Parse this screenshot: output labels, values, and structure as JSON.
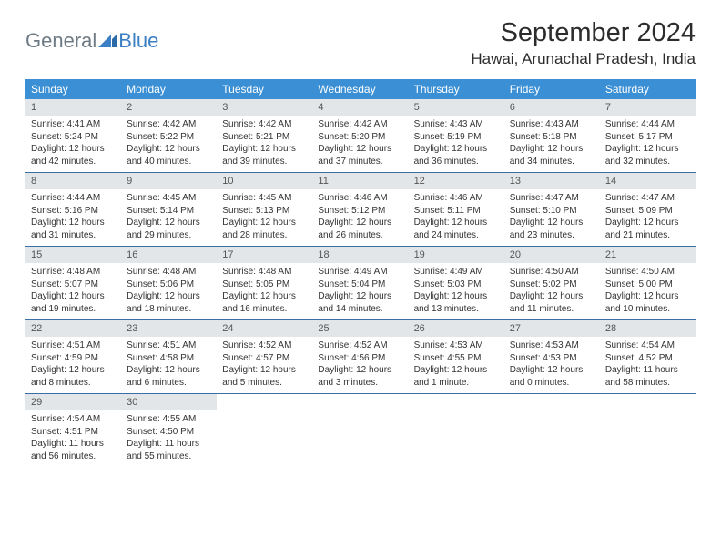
{
  "logo": {
    "text1": "General",
    "text2": "Blue"
  },
  "title": "September 2024",
  "location": "Hawai, Arunachal Pradesh, India",
  "weekdays": [
    "Sunday",
    "Monday",
    "Tuesday",
    "Wednesday",
    "Thursday",
    "Friday",
    "Saturday"
  ],
  "colors": {
    "header_bg": "#3b8fd4",
    "header_text": "#ffffff",
    "row_divider": "#3b6fa4",
    "daynum_bg": "#e3e6e8",
    "logo_gray": "#6f7b84",
    "logo_blue": "#3b7fc4"
  },
  "weeks": [
    [
      {
        "n": "1",
        "sr": "Sunrise: 4:41 AM",
        "ss": "Sunset: 5:24 PM",
        "dl": "Daylight: 12 hours and 42 minutes."
      },
      {
        "n": "2",
        "sr": "Sunrise: 4:42 AM",
        "ss": "Sunset: 5:22 PM",
        "dl": "Daylight: 12 hours and 40 minutes."
      },
      {
        "n": "3",
        "sr": "Sunrise: 4:42 AM",
        "ss": "Sunset: 5:21 PM",
        "dl": "Daylight: 12 hours and 39 minutes."
      },
      {
        "n": "4",
        "sr": "Sunrise: 4:42 AM",
        "ss": "Sunset: 5:20 PM",
        "dl": "Daylight: 12 hours and 37 minutes."
      },
      {
        "n": "5",
        "sr": "Sunrise: 4:43 AM",
        "ss": "Sunset: 5:19 PM",
        "dl": "Daylight: 12 hours and 36 minutes."
      },
      {
        "n": "6",
        "sr": "Sunrise: 4:43 AM",
        "ss": "Sunset: 5:18 PM",
        "dl": "Daylight: 12 hours and 34 minutes."
      },
      {
        "n": "7",
        "sr": "Sunrise: 4:44 AM",
        "ss": "Sunset: 5:17 PM",
        "dl": "Daylight: 12 hours and 32 minutes."
      }
    ],
    [
      {
        "n": "8",
        "sr": "Sunrise: 4:44 AM",
        "ss": "Sunset: 5:16 PM",
        "dl": "Daylight: 12 hours and 31 minutes."
      },
      {
        "n": "9",
        "sr": "Sunrise: 4:45 AM",
        "ss": "Sunset: 5:14 PM",
        "dl": "Daylight: 12 hours and 29 minutes."
      },
      {
        "n": "10",
        "sr": "Sunrise: 4:45 AM",
        "ss": "Sunset: 5:13 PM",
        "dl": "Daylight: 12 hours and 28 minutes."
      },
      {
        "n": "11",
        "sr": "Sunrise: 4:46 AM",
        "ss": "Sunset: 5:12 PM",
        "dl": "Daylight: 12 hours and 26 minutes."
      },
      {
        "n": "12",
        "sr": "Sunrise: 4:46 AM",
        "ss": "Sunset: 5:11 PM",
        "dl": "Daylight: 12 hours and 24 minutes."
      },
      {
        "n": "13",
        "sr": "Sunrise: 4:47 AM",
        "ss": "Sunset: 5:10 PM",
        "dl": "Daylight: 12 hours and 23 minutes."
      },
      {
        "n": "14",
        "sr": "Sunrise: 4:47 AM",
        "ss": "Sunset: 5:09 PM",
        "dl": "Daylight: 12 hours and 21 minutes."
      }
    ],
    [
      {
        "n": "15",
        "sr": "Sunrise: 4:48 AM",
        "ss": "Sunset: 5:07 PM",
        "dl": "Daylight: 12 hours and 19 minutes."
      },
      {
        "n": "16",
        "sr": "Sunrise: 4:48 AM",
        "ss": "Sunset: 5:06 PM",
        "dl": "Daylight: 12 hours and 18 minutes."
      },
      {
        "n": "17",
        "sr": "Sunrise: 4:48 AM",
        "ss": "Sunset: 5:05 PM",
        "dl": "Daylight: 12 hours and 16 minutes."
      },
      {
        "n": "18",
        "sr": "Sunrise: 4:49 AM",
        "ss": "Sunset: 5:04 PM",
        "dl": "Daylight: 12 hours and 14 minutes."
      },
      {
        "n": "19",
        "sr": "Sunrise: 4:49 AM",
        "ss": "Sunset: 5:03 PM",
        "dl": "Daylight: 12 hours and 13 minutes."
      },
      {
        "n": "20",
        "sr": "Sunrise: 4:50 AM",
        "ss": "Sunset: 5:02 PM",
        "dl": "Daylight: 12 hours and 11 minutes."
      },
      {
        "n": "21",
        "sr": "Sunrise: 4:50 AM",
        "ss": "Sunset: 5:00 PM",
        "dl": "Daylight: 12 hours and 10 minutes."
      }
    ],
    [
      {
        "n": "22",
        "sr": "Sunrise: 4:51 AM",
        "ss": "Sunset: 4:59 PM",
        "dl": "Daylight: 12 hours and 8 minutes."
      },
      {
        "n": "23",
        "sr": "Sunrise: 4:51 AM",
        "ss": "Sunset: 4:58 PM",
        "dl": "Daylight: 12 hours and 6 minutes."
      },
      {
        "n": "24",
        "sr": "Sunrise: 4:52 AM",
        "ss": "Sunset: 4:57 PM",
        "dl": "Daylight: 12 hours and 5 minutes."
      },
      {
        "n": "25",
        "sr": "Sunrise: 4:52 AM",
        "ss": "Sunset: 4:56 PM",
        "dl": "Daylight: 12 hours and 3 minutes."
      },
      {
        "n": "26",
        "sr": "Sunrise: 4:53 AM",
        "ss": "Sunset: 4:55 PM",
        "dl": "Daylight: 12 hours and 1 minute."
      },
      {
        "n": "27",
        "sr": "Sunrise: 4:53 AM",
        "ss": "Sunset: 4:53 PM",
        "dl": "Daylight: 12 hours and 0 minutes."
      },
      {
        "n": "28",
        "sr": "Sunrise: 4:54 AM",
        "ss": "Sunset: 4:52 PM",
        "dl": "Daylight: 11 hours and 58 minutes."
      }
    ],
    [
      {
        "n": "29",
        "sr": "Sunrise: 4:54 AM",
        "ss": "Sunset: 4:51 PM",
        "dl": "Daylight: 11 hours and 56 minutes."
      },
      {
        "n": "30",
        "sr": "Sunrise: 4:55 AM",
        "ss": "Sunset: 4:50 PM",
        "dl": "Daylight: 11 hours and 55 minutes."
      },
      {
        "empty": true
      },
      {
        "empty": true
      },
      {
        "empty": true
      },
      {
        "empty": true
      },
      {
        "empty": true
      }
    ]
  ]
}
